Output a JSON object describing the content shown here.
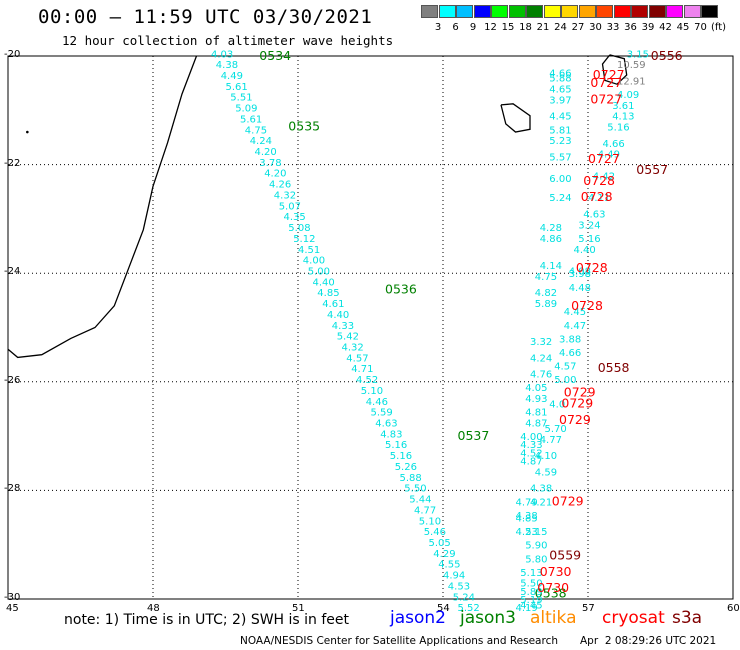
{
  "header": {
    "title": "00:00 – 11:59 UTC 03/30/2021",
    "subtitle": "12 hour collection of altimeter wave heights"
  },
  "legend": {
    "unit": "(ft)",
    "bins": [
      {
        "color": "#808080",
        "label": "3"
      },
      {
        "color": "#00ffff",
        "label": "6"
      },
      {
        "color": "#00bfff",
        "label": "9"
      },
      {
        "color": "#0000ff",
        "label": "12"
      },
      {
        "color": "#00ff00",
        "label": "15"
      },
      {
        "color": "#00c000",
        "label": "18"
      },
      {
        "color": "#008000",
        "label": "21"
      },
      {
        "color": "#ffff00",
        "label": "24"
      },
      {
        "color": "#ffd700",
        "label": "27"
      },
      {
        "color": "#ffa500",
        "label": "30"
      },
      {
        "color": "#ff4500",
        "label": "33"
      },
      {
        "color": "#ff0000",
        "label": "36"
      },
      {
        "color": "#b00000",
        "label": "39"
      },
      {
        "color": "#800000",
        "label": "42"
      },
      {
        "color": "#ff00ff",
        "label": "45"
      },
      {
        "color": "#ee82ee",
        "label": "70"
      },
      {
        "color": "#000000",
        "label": ""
      }
    ]
  },
  "axes": {
    "lon_ticks": [
      "45",
      "48",
      "51",
      "54",
      "57",
      "60"
    ],
    "lat_ticks": [
      "-20",
      "-22",
      "-24",
      "-26",
      "-28",
      "-30"
    ]
  },
  "colors": {
    "wave": "#00e0e0",
    "gray_wave": "#808080",
    "jason3_time": "#008000",
    "cryosat_time": "#ff0000",
    "s3a_time": "#800000",
    "jason2": "#0000ff",
    "jason3": "#008000",
    "altika": "#ff8c00",
    "cryosat": "#ff0000",
    "s3a": "#800000"
  },
  "track_west": {
    "times": [
      {
        "lon": 50.2,
        "lat": -20.0,
        "label": "0534"
      },
      {
        "lon": 50.8,
        "lat": -21.3,
        "label": "0535"
      },
      {
        "lon": 52.8,
        "lat": -24.3,
        "label": "0536"
      },
      {
        "lon": 54.3,
        "lat": -27.0,
        "label": "0537"
      },
      {
        "lon": 55.9,
        "lat": -29.9,
        "label": "0538"
      }
    ],
    "heights": [
      {
        "lon": 49.2,
        "lat": -19.95,
        "label": "4.03"
      },
      {
        "lon": 49.3,
        "lat": -20.15,
        "label": "4.38"
      },
      {
        "lon": 49.4,
        "lat": -20.35,
        "label": "4.49"
      },
      {
        "lon": 49.5,
        "lat": -20.55,
        "label": "5.61"
      },
      {
        "lon": 49.6,
        "lat": -20.75,
        "label": "5.51"
      },
      {
        "lon": 49.7,
        "lat": -20.95,
        "label": "5.09"
      },
      {
        "lon": 49.8,
        "lat": -21.15,
        "label": "5.61"
      },
      {
        "lon": 49.9,
        "lat": -21.35,
        "label": "4.75"
      },
      {
        "lon": 50.0,
        "lat": -21.55,
        "label": "4.24"
      },
      {
        "lon": 50.1,
        "lat": -21.75,
        "label": "4.20"
      },
      {
        "lon": 50.2,
        "lat": -21.95,
        "label": "3.78"
      },
      {
        "lon": 50.3,
        "lat": -22.15,
        "label": "4.20"
      },
      {
        "lon": 50.4,
        "lat": -22.35,
        "label": "4.26"
      },
      {
        "lon": 50.5,
        "lat": -22.55,
        "label": "4.32"
      },
      {
        "lon": 50.6,
        "lat": -22.75,
        "label": "5.07"
      },
      {
        "lon": 50.7,
        "lat": -22.95,
        "label": "4.35"
      },
      {
        "lon": 50.8,
        "lat": -23.15,
        "label": "5.08"
      },
      {
        "lon": 50.9,
        "lat": -23.35,
        "label": "5.12"
      },
      {
        "lon": 51.0,
        "lat": -23.55,
        "label": "4.51"
      },
      {
        "lon": 51.1,
        "lat": -23.75,
        "label": "4.00"
      },
      {
        "lon": 51.2,
        "lat": -23.95,
        "label": "5.00"
      },
      {
        "lon": 51.3,
        "lat": -24.15,
        "label": "4.40"
      },
      {
        "lon": 51.4,
        "lat": -24.35,
        "label": "4.85"
      },
      {
        "lon": 51.5,
        "lat": -24.55,
        "label": "4.61"
      },
      {
        "lon": 51.6,
        "lat": -24.75,
        "label": "4.40"
      },
      {
        "lon": 51.7,
        "lat": -24.95,
        "label": "4.33"
      },
      {
        "lon": 51.8,
        "lat": -25.15,
        "label": "5.42"
      },
      {
        "lon": 51.9,
        "lat": -25.35,
        "label": "4.32"
      },
      {
        "lon": 52.0,
        "lat": -25.55,
        "label": "4.57"
      },
      {
        "lon": 52.1,
        "lat": -25.75,
        "label": "4.71"
      },
      {
        "lon": 52.2,
        "lat": -25.95,
        "label": "4.52"
      },
      {
        "lon": 52.3,
        "lat": -26.15,
        "label": "5.10"
      },
      {
        "lon": 52.4,
        "lat": -26.35,
        "label": "4.46"
      },
      {
        "lon": 52.5,
        "lat": -26.55,
        "label": "5.59"
      },
      {
        "lon": 52.6,
        "lat": -26.75,
        "label": "4.63"
      },
      {
        "lon": 52.7,
        "lat": -26.95,
        "label": "4.83"
      },
      {
        "lon": 52.8,
        "lat": -27.15,
        "label": "5.16"
      },
      {
        "lon": 52.9,
        "lat": -27.35,
        "label": "5.16"
      },
      {
        "lon": 53.0,
        "lat": -27.55,
        "label": "5.26"
      },
      {
        "lon": 53.1,
        "lat": -27.75,
        "label": "5.88"
      },
      {
        "lon": 53.2,
        "lat": -27.95,
        "label": "5.50"
      },
      {
        "lon": 53.3,
        "lat": -28.15,
        "label": "5.44"
      },
      {
        "lon": 53.4,
        "lat": -28.35,
        "label": "4.77"
      },
      {
        "lon": 53.5,
        "lat": -28.55,
        "label": "5.10"
      },
      {
        "lon": 53.6,
        "lat": -28.75,
        "label": "5.46"
      },
      {
        "lon": 53.7,
        "lat": -28.95,
        "label": "5.05"
      },
      {
        "lon": 53.8,
        "lat": -29.15,
        "label": "4.29"
      },
      {
        "lon": 53.9,
        "lat": -29.35,
        "label": "4.55"
      },
      {
        "lon": 54.0,
        "lat": -29.55,
        "label": "4.94"
      },
      {
        "lon": 54.1,
        "lat": -29.75,
        "label": "4.53"
      },
      {
        "lon": 54.2,
        "lat": -29.95,
        "label": "5.24"
      },
      {
        "lon": 54.3,
        "lat": -30.15,
        "label": "5.52"
      }
    ]
  },
  "track_east": {
    "times": [
      {
        "lon": 58.3,
        "lat": -20.0,
        "label": "0556",
        "color": "s3a"
      },
      {
        "lon": 57.1,
        "lat": -20.35,
        "label": "0727",
        "color": "cryosat"
      },
      {
        "lon": 57.05,
        "lat": -20.5,
        "label": "0727",
        "color": "cryosat"
      },
      {
        "lon": 57.05,
        "lat": -20.8,
        "label": "0727",
        "color": "cryosat"
      },
      {
        "lon": 57.0,
        "lat": -21.9,
        "label": "0727",
        "color": "cryosat"
      },
      {
        "lon": 58.0,
        "lat": -22.1,
        "label": "0557",
        "color": "s3a"
      },
      {
        "lon": 56.9,
        "lat": -22.3,
        "label": "0728",
        "color": "cryosat"
      },
      {
        "lon": 56.85,
        "lat": -22.6,
        "label": "0728",
        "color": "cryosat"
      },
      {
        "lon": 56.75,
        "lat": -23.9,
        "label": "0728",
        "color": "cryosat"
      },
      {
        "lon": 56.65,
        "lat": -24.6,
        "label": "0728",
        "color": "cryosat"
      },
      {
        "lon": 57.2,
        "lat": -25.75,
        "label": "0558",
        "color": "s3a"
      },
      {
        "lon": 56.5,
        "lat": -26.2,
        "label": "0729",
        "color": "cryosat"
      },
      {
        "lon": 56.45,
        "lat": -26.4,
        "label": "0729",
        "color": "cryosat"
      },
      {
        "lon": 56.4,
        "lat": -26.7,
        "label": "0729",
        "color": "cryosat"
      },
      {
        "lon": 56.25,
        "lat": -28.2,
        "label": "0729",
        "color": "cryosat"
      },
      {
        "lon": 56.2,
        "lat": -29.2,
        "label": "0559",
        "color": "s3a"
      },
      {
        "lon": 56.0,
        "lat": -29.5,
        "label": "0730",
        "color": "cryosat"
      },
      {
        "lon": 55.95,
        "lat": -29.8,
        "label": "0730",
        "color": "cryosat"
      }
    ],
    "heights": [
      {
        "lon": 57.8,
        "lat": -19.95,
        "label": "3.15",
        "color": "wave"
      },
      {
        "lon": 57.6,
        "lat": -20.15,
        "label": "10.59",
        "color": "gray_wave"
      },
      {
        "lon": 57.6,
        "lat": -20.45,
        "label": "12.91",
        "color": "gray_wave"
      },
      {
        "lon": 56.2,
        "lat": -20.3,
        "label": "4.66",
        "color": "wave"
      },
      {
        "lon": 56.2,
        "lat": -20.4,
        "label": "5.88",
        "color": "wave"
      },
      {
        "lon": 56.2,
        "lat": -20.6,
        "label": "4.65",
        "color": "wave"
      },
      {
        "lon": 56.2,
        "lat": -20.8,
        "label": "3.97",
        "color": "wave"
      },
      {
        "lon": 57.6,
        "lat": -20.7,
        "label": "4.09",
        "color": "wave"
      },
      {
        "lon": 57.5,
        "lat": -20.9,
        "label": "3.61",
        "color": "wave"
      },
      {
        "lon": 57.5,
        "lat": -21.1,
        "label": "4.13",
        "color": "wave"
      },
      {
        "lon": 57.4,
        "lat": -21.3,
        "label": "5.16",
        "color": "wave"
      },
      {
        "lon": 57.3,
        "lat": -21.6,
        "label": "4.66",
        "color": "wave"
      },
      {
        "lon": 57.2,
        "lat": -21.8,
        "label": "4.49",
        "color": "wave"
      },
      {
        "lon": 56.2,
        "lat": -21.1,
        "label": "4.45",
        "color": "wave"
      },
      {
        "lon": 56.2,
        "lat": -21.35,
        "label": "5.81",
        "color": "wave"
      },
      {
        "lon": 56.2,
        "lat": -21.55,
        "label": "5.23",
        "color": "wave"
      },
      {
        "lon": 56.2,
        "lat": -21.85,
        "label": "5.57",
        "color": "wave"
      },
      {
        "lon": 56.2,
        "lat": -22.25,
        "label": "6.00",
        "color": "wave"
      },
      {
        "lon": 57.1,
        "lat": -22.2,
        "label": "4.42",
        "color": "wave"
      },
      {
        "lon": 57.0,
        "lat": -22.6,
        "label": "4.11",
        "color": "wave"
      },
      {
        "lon": 56.2,
        "lat": -22.6,
        "label": "5.24",
        "color": "wave"
      },
      {
        "lon": 56.9,
        "lat": -22.9,
        "label": "4.63",
        "color": "wave"
      },
      {
        "lon": 56.8,
        "lat": -23.1,
        "label": "3.24",
        "color": "wave"
      },
      {
        "lon": 56.8,
        "lat": -23.35,
        "label": "5.16",
        "color": "wave"
      },
      {
        "lon": 56.7,
        "lat": -23.55,
        "label": "4.40",
        "color": "wave"
      },
      {
        "lon": 56.0,
        "lat": -23.15,
        "label": "4.28",
        "color": "wave"
      },
      {
        "lon": 56.0,
        "lat": -23.35,
        "label": "4.86",
        "color": "wave"
      },
      {
        "lon": 56.0,
        "lat": -23.85,
        "label": "4.14",
        "color": "wave"
      },
      {
        "lon": 56.6,
        "lat": -23.95,
        "label": "4.08",
        "color": "wave"
      },
      {
        "lon": 56.6,
        "lat": -24.0,
        "label": "3.98",
        "color": "wave"
      },
      {
        "lon": 56.6,
        "lat": -24.25,
        "label": "4.48",
        "color": "wave"
      },
      {
        "lon": 55.9,
        "lat": -24.05,
        "label": "4.75",
        "color": "wave"
      },
      {
        "lon": 55.9,
        "lat": -24.35,
        "label": "4.82",
        "color": "wave"
      },
      {
        "lon": 55.9,
        "lat": -24.55,
        "label": "5.89",
        "color": "wave"
      },
      {
        "lon": 56.5,
        "lat": -24.7,
        "label": "4.45",
        "color": "wave"
      },
      {
        "lon": 56.5,
        "lat": -24.95,
        "label": "4.47",
        "color": "wave"
      },
      {
        "lon": 56.4,
        "lat": -25.2,
        "label": "3.88",
        "color": "wave"
      },
      {
        "lon": 56.4,
        "lat": -25.45,
        "label": "4.66",
        "color": "wave"
      },
      {
        "lon": 56.3,
        "lat": -25.7,
        "label": "4.57",
        "color": "wave"
      },
      {
        "lon": 55.8,
        "lat": -25.25,
        "label": "3.32",
        "color": "wave"
      },
      {
        "lon": 55.8,
        "lat": -25.55,
        "label": "4.24",
        "color": "wave"
      },
      {
        "lon": 55.8,
        "lat": -25.85,
        "label": "4.76",
        "color": "wave"
      },
      {
        "lon": 56.3,
        "lat": -25.95,
        "label": "5.00",
        "color": "wave"
      },
      {
        "lon": 55.7,
        "lat": -26.1,
        "label": "4.05",
        "color": "wave"
      },
      {
        "lon": 55.7,
        "lat": -26.3,
        "label": "4.93",
        "color": "wave"
      },
      {
        "lon": 56.2,
        "lat": -26.4,
        "label": "4.0",
        "color": "wave"
      },
      {
        "lon": 55.7,
        "lat": -26.55,
        "label": "4.81",
        "color": "wave"
      },
      {
        "lon": 55.7,
        "lat": -26.75,
        "label": "4.87",
        "color": "wave"
      },
      {
        "lon": 56.1,
        "lat": -26.85,
        "label": "5.70",
        "color": "wave"
      },
      {
        "lon": 55.6,
        "lat": -27.0,
        "label": "4.00",
        "color": "wave"
      },
      {
        "lon": 55.6,
        "lat": -27.15,
        "label": "4.33",
        "color": "wave"
      },
      {
        "lon": 56.0,
        "lat": -27.05,
        "label": "4.77",
        "color": "wave"
      },
      {
        "lon": 55.6,
        "lat": -27.3,
        "label": "4.52",
        "color": "wave"
      },
      {
        "lon": 55.6,
        "lat": -27.45,
        "label": "4.87",
        "color": "wave"
      },
      {
        "lon": 55.9,
        "lat": -27.35,
        "label": "4.10",
        "color": "wave"
      },
      {
        "lon": 55.9,
        "lat": -27.65,
        "label": "4.59",
        "color": "wave"
      },
      {
        "lon": 55.8,
        "lat": -27.95,
        "label": "4.38",
        "color": "wave"
      },
      {
        "lon": 55.5,
        "lat": -28.2,
        "label": "4.79",
        "color": "wave"
      },
      {
        "lon": 55.8,
        "lat": -28.2,
        "label": "4.21",
        "color": "wave"
      },
      {
        "lon": 55.5,
        "lat": -28.45,
        "label": "4.38",
        "color": "wave"
      },
      {
        "lon": 55.5,
        "lat": -28.5,
        "label": "4.85",
        "color": "wave"
      },
      {
        "lon": 55.5,
        "lat": -28.75,
        "label": "4.23",
        "color": "wave"
      },
      {
        "lon": 55.7,
        "lat": -28.75,
        "label": "5.15",
        "color": "wave"
      },
      {
        "lon": 55.7,
        "lat": -29.0,
        "label": "5.90",
        "color": "wave"
      },
      {
        "lon": 55.7,
        "lat": -29.25,
        "label": "5.80",
        "color": "wave"
      },
      {
        "lon": 55.6,
        "lat": -29.5,
        "label": "5.13",
        "color": "wave"
      },
      {
        "lon": 55.6,
        "lat": -29.7,
        "label": "5.50",
        "color": "wave"
      },
      {
        "lon": 55.6,
        "lat": -29.85,
        "label": "5.89",
        "color": "wave"
      },
      {
        "lon": 55.6,
        "lat": -30.0,
        "label": "5.19",
        "color": "wave"
      },
      {
        "lon": 55.6,
        "lat": -30.1,
        "label": "4.45",
        "color": "wave"
      },
      {
        "lon": 55.5,
        "lat": -30.15,
        "label": "4.19",
        "color": "wave"
      }
    ]
  },
  "footer": {
    "note": "note: 1) Time is in UTC; 2) SWH is in feet",
    "missions": [
      {
        "name": "jason2",
        "color": "jason2"
      },
      {
        "name": "jason3",
        "color": "jason3"
      },
      {
        "name": "altika",
        "color": "altika"
      },
      {
        "name": "cryosat",
        "color": "cryosat"
      },
      {
        "name": "s3a",
        "color": "s3a"
      }
    ],
    "credit": "NOAA/NESDIS Center for Satellite Applications and Research",
    "timestamp": "Apr  2 08:29:26 UTC 2021"
  }
}
